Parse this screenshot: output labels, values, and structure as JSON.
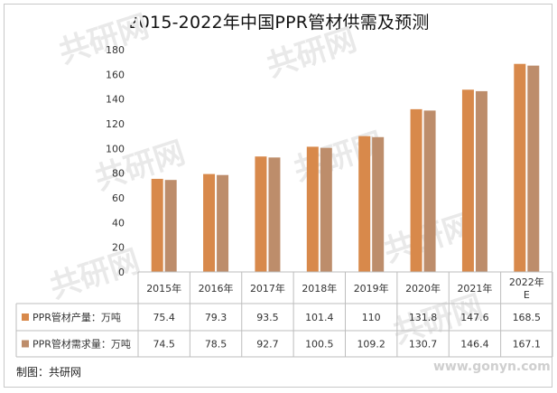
{
  "chart_data": {
    "type": "bar",
    "title": "2015-2022年中国PPR管材供需及预测",
    "categories": [
      "2015年",
      "2016年",
      "2017年",
      "2018年",
      "2019年",
      "2020年",
      "2021年",
      "2022年E"
    ],
    "series": [
      {
        "name": "PPR管材产量：万吨",
        "values": [
          75.4,
          79.3,
          93.5,
          101.4,
          110,
          131.8,
          147.6,
          168.5
        ],
        "color": "#d8894b"
      },
      {
        "name": "PPR管材需求量：万吨",
        "values": [
          74.5,
          78.5,
          92.7,
          100.5,
          109.2,
          130.7,
          146.4,
          167.1
        ],
        "color": "#bd8d6b"
      }
    ],
    "table_display": [
      [
        "75.4",
        "79.3",
        "93.5",
        "101.4",
        "110",
        "131.8",
        "147.6",
        "168.5"
      ],
      [
        "74.5",
        "78.5",
        "92.7",
        "100.5",
        "109.2",
        "130.7",
        "146.4",
        "167.1"
      ]
    ],
    "ylim": [
      0,
      180
    ],
    "yticks": [
      0,
      20,
      40,
      60,
      80,
      100,
      120,
      140,
      160,
      180
    ],
    "grid": false,
    "legend": "data-table"
  },
  "source_text": "制图：共研网",
  "watermark_text": "共研网",
  "site_url": "www.gonyn.com"
}
